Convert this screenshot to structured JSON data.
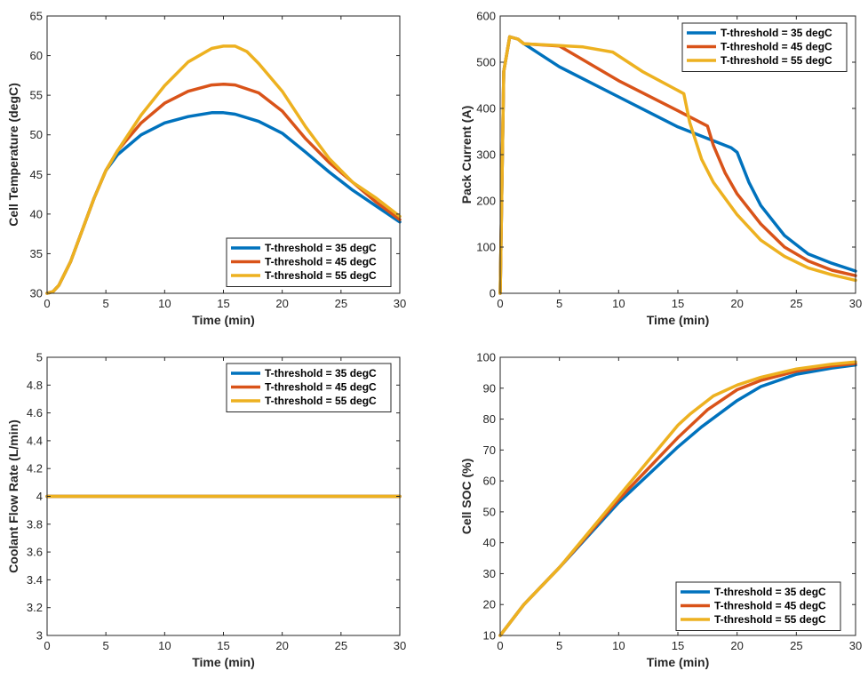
{
  "chart_data": [
    {
      "type": "line",
      "xlabel": "Time (min)",
      "ylabel": "Cell Temperature (degC)",
      "xlim": [
        0,
        30
      ],
      "ylim": [
        30,
        65
      ],
      "xticks": [
        "0",
        "5",
        "10",
        "15",
        "20",
        "25",
        "30"
      ],
      "yticks": [
        "30",
        "35",
        "40",
        "45",
        "50",
        "55",
        "60",
        "65"
      ],
      "grid": false,
      "legend_position": "bottom-right",
      "series": [
        {
          "name": "T-threshold = 35 degC",
          "color": "#0072BD",
          "x": [
            0,
            0.5,
            1,
            2,
            3,
            4,
            5,
            6,
            8,
            10,
            12,
            14,
            15,
            16,
            18,
            20,
            22,
            24,
            26,
            28,
            30
          ],
          "y": [
            30,
            30.2,
            31,
            34,
            38,
            42,
            45.5,
            47.5,
            50,
            51.5,
            52.3,
            52.8,
            52.8,
            52.6,
            51.7,
            50.2,
            47.8,
            45.3,
            43,
            41,
            39
          ]
        },
        {
          "name": "T-threshold = 45 degC",
          "color": "#D95319",
          "x": [
            0,
            0.5,
            1,
            2,
            3,
            4,
            5,
            6,
            8,
            10,
            12,
            14,
            15,
            16,
            18,
            20,
            22,
            24,
            26,
            28,
            30
          ],
          "y": [
            30,
            30.2,
            31,
            34,
            38,
            42,
            45.5,
            48,
            51.5,
            54,
            55.5,
            56.3,
            56.4,
            56.3,
            55.3,
            53,
            49.5,
            46.5,
            44,
            41.5,
            39.3
          ]
        },
        {
          "name": "T-threshold = 55 degC",
          "color": "#EDB120",
          "x": [
            0,
            0.5,
            1,
            2,
            3,
            4,
            5,
            6,
            8,
            10,
            12,
            14,
            15,
            16,
            17,
            18,
            20,
            22,
            24,
            26,
            28,
            30
          ],
          "y": [
            30,
            30.2,
            31,
            34,
            38,
            42,
            45.5,
            48,
            52.5,
            56.2,
            59.2,
            60.9,
            61.2,
            61.2,
            60.5,
            59,
            55.5,
            51,
            47,
            44,
            42,
            39.7
          ]
        }
      ]
    },
    {
      "type": "line",
      "xlabel": "Time (min)",
      "ylabel": "Pack Current (A)",
      "xlim": [
        0,
        30
      ],
      "ylim": [
        0,
        600
      ],
      "xticks": [
        "0",
        "5",
        "10",
        "15",
        "20",
        "25",
        "30"
      ],
      "yticks": [
        "0",
        "100",
        "200",
        "300",
        "400",
        "500",
        "600"
      ],
      "grid": false,
      "legend_position": "top-right",
      "series": [
        {
          "name": "T-threshold = 35 degC",
          "color": "#0072BD",
          "x": [
            0,
            0.3,
            0.8,
            1.5,
            2,
            5,
            10,
            15,
            19.5,
            20,
            21,
            22,
            24,
            26,
            28,
            30
          ],
          "y": [
            0,
            480,
            555,
            550,
            540,
            490,
            425,
            360,
            315,
            305,
            240,
            190,
            125,
            85,
            65,
            48
          ]
        },
        {
          "name": "T-threshold = 45 degC",
          "color": "#D95319",
          "x": [
            0,
            0.3,
            0.8,
            1.5,
            2,
            5,
            10,
            15,
            17.5,
            18,
            19,
            20,
            22,
            24,
            26,
            28,
            30
          ],
          "y": [
            0,
            480,
            555,
            550,
            540,
            535,
            460,
            395,
            362,
            320,
            260,
            215,
            150,
            100,
            70,
            50,
            38
          ]
        },
        {
          "name": "T-threshold = 55 degC",
          "color": "#EDB120",
          "x": [
            0,
            0.3,
            0.8,
            1.5,
            2,
            5,
            7,
            9.5,
            12,
            15.5,
            16,
            17,
            18,
            20,
            22,
            24,
            26,
            28,
            30
          ],
          "y": [
            0,
            480,
            555,
            550,
            540,
            536,
            533,
            522,
            480,
            432,
            370,
            290,
            240,
            170,
            115,
            80,
            55,
            40,
            28
          ]
        }
      ]
    },
    {
      "type": "line",
      "xlabel": "Time (min)",
      "ylabel": "Coolant Flow Rate (L/min)",
      "xlim": [
        0,
        30
      ],
      "ylim": [
        3,
        5
      ],
      "xticks": [
        "0",
        "5",
        "10",
        "15",
        "20",
        "25",
        "30"
      ],
      "yticks": [
        "3",
        "3.2",
        "3.4",
        "3.6",
        "3.8",
        "4",
        "4.2",
        "4.4",
        "4.6",
        "4.8",
        "5"
      ],
      "grid": false,
      "legend_position": "top-right",
      "series": [
        {
          "name": "T-threshold = 35 degC",
          "color": "#0072BD",
          "x": [
            0,
            30
          ],
          "y": [
            4,
            4
          ]
        },
        {
          "name": "T-threshold = 45 degC",
          "color": "#D95319",
          "x": [
            0,
            30
          ],
          "y": [
            4,
            4
          ]
        },
        {
          "name": "T-threshold = 55 degC",
          "color": "#EDB120",
          "x": [
            0,
            30
          ],
          "y": [
            4,
            4
          ]
        }
      ]
    },
    {
      "type": "line",
      "xlabel": "Time (min)",
      "ylabel": "Cell SOC (%)",
      "xlim": [
        0,
        30
      ],
      "ylim": [
        10,
        100
      ],
      "xticks": [
        "0",
        "5",
        "10",
        "15",
        "20",
        "25",
        "30"
      ],
      "yticks": [
        "10",
        "20",
        "30",
        "40",
        "50",
        "60",
        "70",
        "80",
        "90",
        "100"
      ],
      "grid": false,
      "legend_position": "bottom-right",
      "series": [
        {
          "name": "T-threshold = 35 degC",
          "color": "#0072BD",
          "x": [
            0,
            2,
            5,
            10,
            15,
            17,
            20,
            22,
            25,
            28,
            30
          ],
          "y": [
            10,
            20,
            32,
            53,
            71,
            77.5,
            86,
            90.5,
            94.5,
            96.5,
            97.5
          ]
        },
        {
          "name": "T-threshold = 45 degC",
          "color": "#D95319",
          "x": [
            0,
            2,
            5,
            10,
            15,
            17.5,
            20,
            22,
            25,
            28,
            30
          ],
          "y": [
            10,
            20,
            32,
            54,
            74,
            83,
            89.5,
            92.5,
            95.5,
            97.2,
            98
          ]
        },
        {
          "name": "T-threshold = 55 degC",
          "color": "#EDB120",
          "x": [
            0,
            2,
            5,
            10,
            15,
            16,
            18,
            20,
            22,
            25,
            28,
            30
          ],
          "y": [
            10,
            20,
            32,
            55,
            78,
            81.5,
            87.5,
            91,
            93.5,
            96.2,
            97.8,
            98.5
          ]
        }
      ]
    }
  ]
}
